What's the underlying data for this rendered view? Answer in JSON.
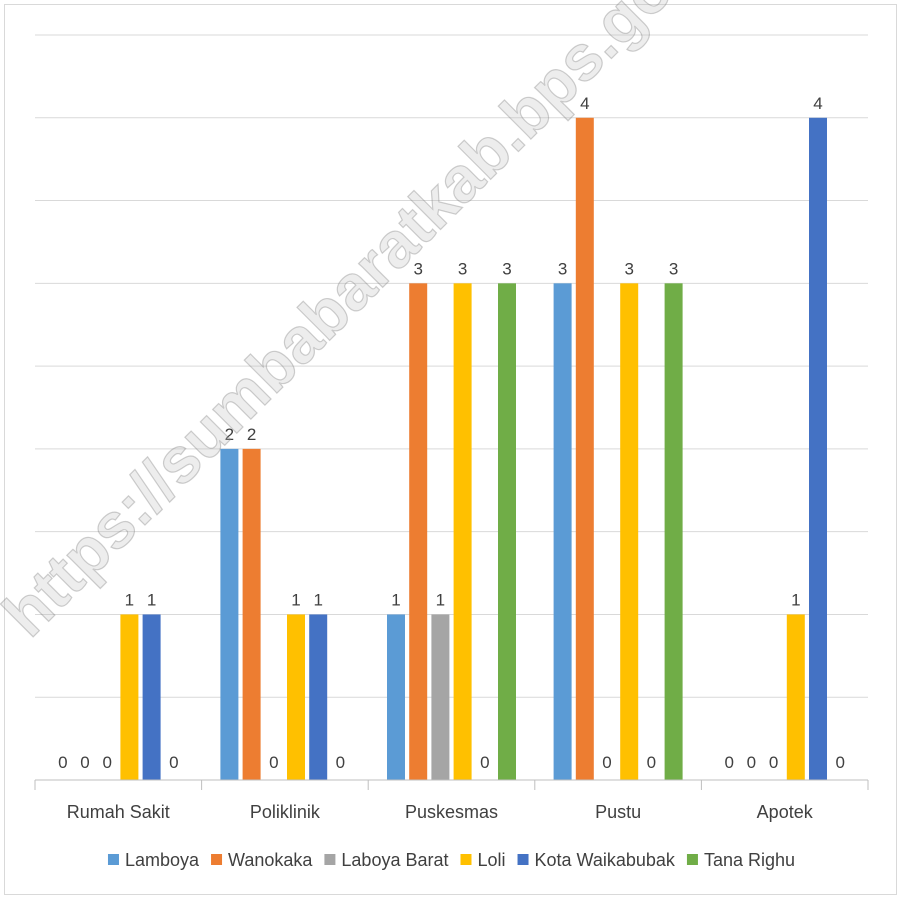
{
  "watermark": "https://sumbabaratkab.bps.go.id",
  "chart_data": {
    "type": "bar",
    "categories": [
      "Rumah Sakit",
      "Poliklinik",
      "Puskesmas",
      "Pustu",
      "Apotek"
    ],
    "series": [
      {
        "name": "Lamboya",
        "color": "#5B9BD5",
        "values": [
          0,
          2,
          1,
          3,
          0
        ]
      },
      {
        "name": "Wanokaka",
        "color": "#ED7D31",
        "values": [
          0,
          2,
          3,
          4,
          0
        ]
      },
      {
        "name": "Laboya Barat",
        "color": "#A5A5A5",
        "values": [
          0,
          0,
          1,
          0,
          0
        ]
      },
      {
        "name": "Loli",
        "color": "#FFC000",
        "values": [
          1,
          1,
          3,
          3,
          1
        ]
      },
      {
        "name": "Kota Waikabubak",
        "color": "#4472C4",
        "values": [
          1,
          1,
          0,
          0,
          4
        ]
      },
      {
        "name": "Tana Righu",
        "color": "#70AD47",
        "values": [
          0,
          0,
          3,
          3,
          0
        ]
      }
    ],
    "ylim": [
      0,
      4.5
    ],
    "gridlines": true,
    "legend_position": "bottom",
    "data_labels": true
  }
}
